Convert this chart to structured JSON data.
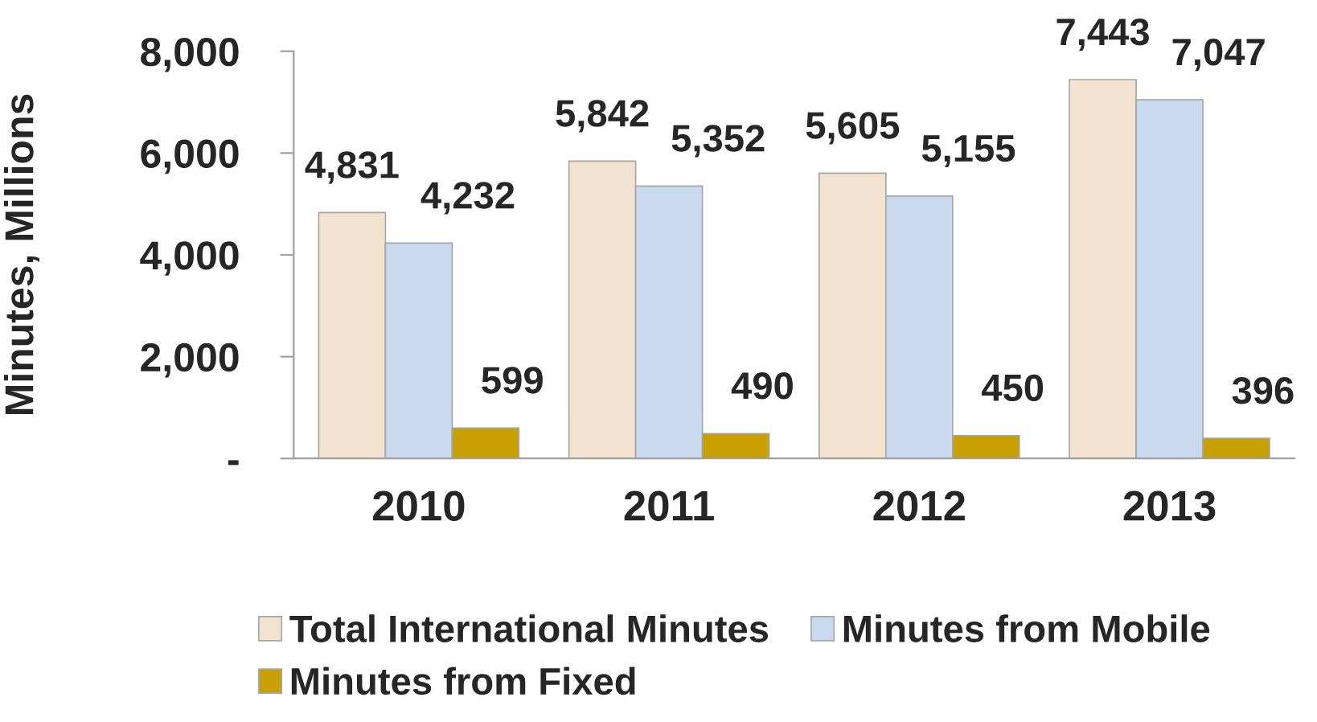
{
  "chart_data": {
    "type": "bar",
    "ylabel": "Minutes, Millions",
    "categories": [
      "2010",
      "2011",
      "2012",
      "2013"
    ],
    "series": [
      {
        "name": "Total International Minutes",
        "color": "#f2e2d0",
        "values": [
          4831,
          5842,
          5605,
          7443
        ],
        "value_labels": [
          "4,831",
          "5,842",
          "5,605",
          "7,443"
        ]
      },
      {
        "name": "Minutes from Mobile",
        "color": "#c9daee",
        "values": [
          4232,
          5352,
          5155,
          7047
        ],
        "value_labels": [
          "4,232",
          "5,352",
          "5,155",
          "7,047"
        ]
      },
      {
        "name": "Minutes from Fixed",
        "color": "#c8a000",
        "values": [
          599,
          490,
          450,
          396
        ],
        "value_labels": [
          "599",
          "490",
          "450",
          "396"
        ]
      }
    ],
    "ylim": [
      0,
      8000
    ],
    "yticks": [
      {
        "value": 0,
        "label": "-"
      },
      {
        "value": 2000,
        "label": "2,000"
      },
      {
        "value": 4000,
        "label": "4,000"
      },
      {
        "value": 6000,
        "label": "6,000"
      },
      {
        "value": 8000,
        "label": "8,000"
      }
    ],
    "grid": false,
    "legend": "bottom"
  }
}
